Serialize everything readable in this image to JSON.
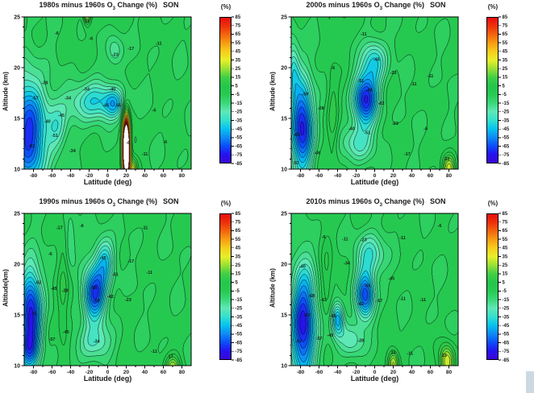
{
  "page": {
    "background": "#ffffff",
    "edge_strip_color": "#cdd9e2"
  },
  "colors": {
    "frame": "#000000",
    "tick_text": "#1a1a1a",
    "title_text": "#1a1a1a",
    "contour_label": "#111111",
    "saturated_fill": "#ffffff",
    "over_range_band": "#5a1010",
    "map": [
      [
        -85,
        "#3c06d6"
      ],
      [
        -75,
        "#2414f0"
      ],
      [
        -65,
        "#0b50fa"
      ],
      [
        -55,
        "#0d8cf5"
      ],
      [
        -45,
        "#06c3ef"
      ],
      [
        -35,
        "#35e0cc"
      ],
      [
        -25,
        "#5fe8b5"
      ],
      [
        -15,
        "#39d878"
      ],
      [
        -5,
        "#27ca52"
      ],
      [
        5,
        "#23c64b"
      ],
      [
        15,
        "#40cf45"
      ],
      [
        25,
        "#97e035"
      ],
      [
        35,
        "#e6ef2b"
      ],
      [
        45,
        "#f6cf1d"
      ],
      [
        55,
        "#f89e12"
      ],
      [
        65,
        "#f4660d"
      ],
      [
        75,
        "#ee320b"
      ],
      [
        85,
        "#e60e0e"
      ]
    ]
  },
  "chart_data": [
    {
      "type": "contour",
      "name": "1980s",
      "title": "1980s minus 1960s O3 Change (%)",
      "title_pre": "1980s minus 1960s O",
      "title_sub": "3",
      "title_post": " Change (%)",
      "season": "SON",
      "xlabel": "Latitude (deg)",
      "ylabel": "Altitude (km)",
      "xlim": [
        -90,
        90
      ],
      "ylim": [
        10,
        25
      ],
      "x_ticks": [
        -80,
        -60,
        -40,
        -20,
        0,
        20,
        40,
        60,
        80
      ],
      "y_ticks": [
        10,
        15,
        20,
        25
      ],
      "x_minor_step": 10,
      "y_minor_step": 1,
      "colorbar": {
        "label": "(%)",
        "min": -85,
        "max": 85,
        "tick_step": 10,
        "ticks": [
          85,
          75,
          65,
          55,
          45,
          35,
          25,
          15,
          5,
          -5,
          -15,
          -25,
          -35,
          -45,
          -55,
          -65,
          -75,
          -85
        ]
      },
      "contour_interval_pct": 5.7,
      "base_value_pct": -4.5,
      "features": [
        {
          "name": "antarctic-depletion-core",
          "lat": -85,
          "alt": 13.5,
          "peak_pct": -66,
          "lat_halfwidth": 19,
          "alt_halfwidth": 5.5
        },
        {
          "name": "southern-midlat-band",
          "lat": -55,
          "alt": 14,
          "peak_pct": -22,
          "lat_halfwidth": 11,
          "alt_halfwidth": 2.5
        },
        {
          "name": "tropical-band-17km",
          "lat": -15,
          "alt": 16.6,
          "peak_pct": -36,
          "lat_halfwidth": 28,
          "alt_halfwidth": 1.9
        },
        {
          "name": "tropical-pocket",
          "lat": 7,
          "alt": 16.4,
          "peak_pct": -26,
          "lat_halfwidth": 10,
          "alt_halfwidth": 1.4
        },
        {
          "name": "upper-tropical-pocket",
          "lat": 8,
          "alt": 21.6,
          "peak_pct": -19,
          "lat_halfwidth": 9,
          "alt_halfwidth": 1.6
        },
        {
          "name": "volcanic-aerosol-column",
          "lat": 20,
          "alt": 12,
          "peak_pct": 260,
          "lat_halfwidth": 3.5,
          "alt_halfwidth": 2.6
        },
        {
          "name": "volcanic-base-positive",
          "lat": 27,
          "alt": 9.8,
          "peak_pct": 34,
          "lat_halfwidth": 5,
          "alt_halfwidth": 1.3
        },
        {
          "name": "top-edge-positive",
          "lat": -22,
          "alt": 26,
          "peak_pct": 60,
          "lat_halfwidth": 4,
          "alt_halfwidth": 1.4
        }
      ],
      "labeled_contours": [
        {
          "lat": -55,
          "alt": 23.4,
          "label": "-6"
        },
        {
          "lat": -18,
          "alt": 22.9,
          "label": "-6"
        },
        {
          "lat": -22,
          "alt": 24.6,
          "label": "11"
        },
        {
          "lat": 25,
          "alt": 21.9,
          "label": "-17"
        },
        {
          "lat": 55,
          "alt": 22.4,
          "label": "-11"
        },
        {
          "lat": 8,
          "alt": 21.3,
          "label": "-23"
        },
        {
          "lat": -68,
          "alt": 18.5,
          "label": "-28"
        },
        {
          "lat": -78,
          "alt": 17.0,
          "label": "-57"
        },
        {
          "lat": -43,
          "alt": 17.0,
          "label": "-34"
        },
        {
          "lat": -23,
          "alt": 17.9,
          "label": "-34"
        },
        {
          "lat": 5,
          "alt": 17.9,
          "label": "-40"
        },
        {
          "lat": -2,
          "alt": 16.3,
          "label": "-45"
        },
        {
          "lat": 11,
          "alt": 16.3,
          "label": "-55"
        },
        {
          "lat": -50,
          "alt": 15.3,
          "label": "-45"
        },
        {
          "lat": -65,
          "alt": 14.7,
          "label": "-40"
        },
        {
          "lat": -57,
          "alt": 13.3,
          "label": "-51"
        },
        {
          "lat": -82,
          "alt": 12.3,
          "label": "-62"
        },
        {
          "lat": -38,
          "alt": 11.8,
          "label": "-34"
        },
        {
          "lat": 50,
          "alt": 15.8,
          "label": "-6"
        },
        {
          "lat": 62,
          "alt": 12.7,
          "label": "-6"
        },
        {
          "lat": 40,
          "alt": 11.5,
          "label": "-11"
        },
        {
          "lat": 22,
          "alt": 12.6,
          "label": "-6"
        }
      ]
    },
    {
      "type": "contour",
      "name": "2000s",
      "title": "2000s minus 1960s O3 Change (%)",
      "title_pre": "2000s minus 1960s O",
      "title_sub": "3",
      "title_post": " Change (%)",
      "season": "SON",
      "xlabel": "Latitude (deg)",
      "ylabel": "Altitude (km)",
      "xlim": [
        -90,
        90
      ],
      "ylim": [
        10,
        25
      ],
      "x_ticks": [
        -80,
        -60,
        -40,
        -20,
        0,
        20,
        40,
        60,
        80
      ],
      "y_ticks": [
        10,
        15,
        20,
        25
      ],
      "x_minor_step": 10,
      "y_minor_step": 1,
      "colorbar": {
        "label": "(%)",
        "min": -85,
        "max": 85,
        "tick_step": 10,
        "ticks": [
          85,
          75,
          65,
          55,
          45,
          35,
          25,
          15,
          5,
          -5,
          -15,
          -25,
          -35,
          -45,
          -55,
          -65,
          -75,
          -85
        ]
      },
      "contour_interval_pct": 5.7,
      "base_value_pct": -4.5,
      "features": [
        {
          "name": "antarctic-depletion-core",
          "lat": -78,
          "alt": 14.2,
          "peak_pct": -72,
          "lat_halfwidth": 12,
          "alt_halfwidth": 4.6
        },
        {
          "name": "antarctic-upper-lobe",
          "lat": -88,
          "alt": 20,
          "peak_pct": -28,
          "lat_halfwidth": 7,
          "alt_halfwidth": 2.8
        },
        {
          "name": "tropical-depletion-core",
          "lat": -10,
          "alt": 16.9,
          "peak_pct": -68,
          "lat_halfwidth": 13,
          "alt_halfwidth": 2.5
        },
        {
          "name": "tropical-upper-lobe",
          "lat": 0,
          "alt": 20.6,
          "peak_pct": -34,
          "lat_halfwidth": 13,
          "alt_halfwidth": 2.2
        },
        {
          "name": "tropical-lower-lobe",
          "lat": -18,
          "alt": 12.6,
          "peak_pct": -26,
          "lat_halfwidth": 17,
          "alt_halfwidth": 1.9
        },
        {
          "name": "midlat-ridge",
          "lat": -45,
          "alt": 15,
          "peak_pct": 14,
          "lat_halfwidth": 6,
          "alt_halfwidth": 5
        },
        {
          "name": "se-corner-positive",
          "lat": 80,
          "alt": 10,
          "peak_pct": 34,
          "lat_halfwidth": 7,
          "alt_halfwidth": 1.4
        }
      ],
      "labeled_contours": [
        {
          "lat": -12,
          "alt": 23.3,
          "label": "-11"
        },
        {
          "lat": -45,
          "alt": 20.0,
          "label": "-6"
        },
        {
          "lat": 20,
          "alt": 19.5,
          "label": "-23"
        },
        {
          "lat": 42,
          "alt": 18.4,
          "label": "-11"
        },
        {
          "lat": 2,
          "alt": 20.8,
          "label": "-45"
        },
        {
          "lat": -15,
          "alt": 18.7,
          "label": "-51"
        },
        {
          "lat": -6,
          "alt": 17.8,
          "label": "-68"
        },
        {
          "lat": 7,
          "alt": 16.5,
          "label": "-62"
        },
        {
          "lat": -25,
          "alt": 14.0,
          "label": "-40"
        },
        {
          "lat": -8,
          "alt": 13.6,
          "label": "-51"
        },
        {
          "lat": 22,
          "alt": 14.5,
          "label": "-23"
        },
        {
          "lat": -75,
          "alt": 17.4,
          "label": "-59"
        },
        {
          "lat": -58,
          "alt": 16.0,
          "label": "-28"
        },
        {
          "lat": -84,
          "alt": 13.4,
          "label": "-63"
        },
        {
          "lat": -62,
          "alt": 11.6,
          "label": "-46"
        },
        {
          "lat": -85,
          "alt": 10.6,
          "label": "-57"
        },
        {
          "lat": 55,
          "alt": 14.0,
          "label": "-6"
        },
        {
          "lat": 60,
          "alt": 19.2,
          "label": "-11"
        },
        {
          "lat": 78,
          "alt": 11.0,
          "label": "23"
        },
        {
          "lat": 35,
          "alt": 11.5,
          "label": "-17"
        }
      ]
    },
    {
      "type": "contour",
      "name": "1990s",
      "title": "1990s minus 1960s O3 Change (%)",
      "title_pre": "1990s minus 1960s O",
      "title_sub": "3",
      "title_post": " Change (%)",
      "season": "SON",
      "xlabel": "Latitude (deg)",
      "ylabel": "Altitude(km)",
      "xlim": [
        -90,
        90
      ],
      "ylim": [
        10,
        25
      ],
      "x_ticks": [
        -80,
        -60,
        -40,
        -20,
        0,
        20,
        40,
        60,
        80
      ],
      "y_ticks": [
        10,
        15,
        20,
        25
      ],
      "x_minor_step": 10,
      "y_minor_step": 1,
      "colorbar": {
        "label": "(%)",
        "min": -85,
        "max": 85,
        "tick_step": 10,
        "ticks": [
          85,
          75,
          65,
          55,
          45,
          35,
          25,
          15,
          5,
          -5,
          -15,
          -25,
          -35,
          -45,
          -55,
          -65,
          -75,
          -85
        ]
      },
      "contour_interval_pct": 5.7,
      "base_value_pct": -4.5,
      "features": [
        {
          "name": "antarctic-depletion-core",
          "lat": -83,
          "alt": 14.8,
          "peak_pct": -74,
          "lat_halfwidth": 12,
          "alt_halfwidth": 4.8
        },
        {
          "name": "antarctic-lower-lobe",
          "lat": -86,
          "alt": 11.5,
          "peak_pct": -20,
          "lat_halfwidth": 9,
          "alt_halfwidth": 1.6
        },
        {
          "name": "tropical-depletion-core",
          "lat": -14,
          "alt": 17.1,
          "peak_pct": -64,
          "lat_halfwidth": 12.5,
          "alt_halfwidth": 2.5
        },
        {
          "name": "tropical-upper-lobe",
          "lat": -3,
          "alt": 20.4,
          "peak_pct": -36,
          "lat_halfwidth": 11,
          "alt_halfwidth": 2.3
        },
        {
          "name": "tropical-lower-lobe",
          "lat": -15,
          "alt": 12.3,
          "peak_pct": -26,
          "lat_halfwidth": 19,
          "alt_halfwidth": 1.8
        },
        {
          "name": "midlat-upper-pocket",
          "lat": -40,
          "alt": 22,
          "peak_pct": -16,
          "lat_halfwidth": 6,
          "alt_halfwidth": 2.5
        },
        {
          "name": "midlat-ridge",
          "lat": -48,
          "alt": 16,
          "peak_pct": 12,
          "lat_halfwidth": 6,
          "alt_halfwidth": 6
        },
        {
          "name": "se-corner-positive",
          "lat": 70,
          "alt": 9.7,
          "peak_pct": 30,
          "lat_halfwidth": 8,
          "alt_halfwidth": 1.3
        }
      ],
      "labeled_contours": [
        {
          "lat": -52,
          "alt": 23.6,
          "label": "-17"
        },
        {
          "lat": -28,
          "alt": 23.8,
          "label": "-6"
        },
        {
          "lat": 40,
          "alt": 23.6,
          "label": "-11"
        },
        {
          "lat": -62,
          "alt": 21.0,
          "label": "-6"
        },
        {
          "lat": -5,
          "alt": 20.6,
          "label": "-45"
        },
        {
          "lat": 25,
          "alt": 20.3,
          "label": "-17"
        },
        {
          "lat": 8,
          "alt": 19.0,
          "label": "-51"
        },
        {
          "lat": 45,
          "alt": 19.2,
          "label": "-11"
        },
        {
          "lat": -75,
          "alt": 18.2,
          "label": "-62"
        },
        {
          "lat": -58,
          "alt": 17.6,
          "label": "-45"
        },
        {
          "lat": -46,
          "alt": 17.4,
          "label": "-28"
        },
        {
          "lat": -15,
          "alt": 17.7,
          "label": "-58"
        },
        {
          "lat": 3,
          "alt": 16.8,
          "label": "-42"
        },
        {
          "lat": 22,
          "alt": 16.5,
          "label": "-23"
        },
        {
          "lat": -12,
          "alt": 16.4,
          "label": "-68"
        },
        {
          "lat": -80,
          "alt": 15.1,
          "label": "-75"
        },
        {
          "lat": -45,
          "alt": 13.3,
          "label": "-45"
        },
        {
          "lat": -60,
          "alt": 12.6,
          "label": "-57"
        },
        {
          "lat": -12,
          "alt": 12.4,
          "label": "-34"
        },
        {
          "lat": 50,
          "alt": 11.4,
          "label": "-11"
        },
        {
          "lat": 68,
          "alt": 10.9,
          "label": "17"
        }
      ]
    },
    {
      "type": "contour",
      "name": "2010s",
      "title": "2010s minus 1960s O3 Change (%)",
      "title_pre": "2010s minus 1960s O",
      "title_sub": "3",
      "title_post": " Change (%)",
      "season": "SON",
      "xlabel": "Latitude (deg)",
      "ylabel": "Altitude (km)",
      "xlim": [
        -90,
        90
      ],
      "ylim": [
        10,
        25
      ],
      "x_ticks": [
        -80,
        -60,
        -40,
        -20,
        0,
        20,
        40,
        60,
        80
      ],
      "y_ticks": [
        10,
        15,
        20,
        25
      ],
      "x_minor_step": 10,
      "y_minor_step": 1,
      "colorbar": {
        "label": "(%)",
        "min": -85,
        "max": 85,
        "tick_step": 10,
        "ticks": [
          85,
          75,
          65,
          55,
          45,
          35,
          25,
          15,
          5,
          -5,
          -15,
          -25,
          -35,
          -45,
          -55,
          -65,
          -75,
          -85
        ]
      },
      "contour_interval_pct": 5.7,
      "base_value_pct": -4.5,
      "features": [
        {
          "name": "antarctic-depletion-core",
          "lat": -77,
          "alt": 14,
          "peak_pct": -74,
          "lat_halfwidth": 13,
          "alt_halfwidth": 5.5
        },
        {
          "name": "tropical-depletion-core",
          "lat": -10,
          "alt": 16.9,
          "peak_pct": -60,
          "lat_halfwidth": 10,
          "alt_halfwidth": 2.3
        },
        {
          "name": "tropical-upper-lobe",
          "lat": -5,
          "alt": 20.9,
          "peak_pct": -30,
          "lat_halfwidth": 15,
          "alt_halfwidth": 2.2
        },
        {
          "name": "midlat-light-pocket",
          "lat": -40,
          "alt": 14.6,
          "peak_pct": -46,
          "lat_halfwidth": 7,
          "alt_halfwidth": 1.7
        },
        {
          "name": "tropical-lower-lobe",
          "lat": -25,
          "alt": 12.4,
          "peak_pct": -22,
          "lat_halfwidth": 14,
          "alt_halfwidth": 1.8
        },
        {
          "name": "midlat-ridge",
          "lat": -52,
          "alt": 18.5,
          "peak_pct": 10,
          "lat_halfwidth": 6,
          "alt_halfwidth": 4
        },
        {
          "name": "tropical-low-positive",
          "lat": 20,
          "alt": 10.2,
          "peak_pct": 34,
          "lat_halfwidth": 6,
          "alt_halfwidth": 1.3
        },
        {
          "name": "se-corner-positive",
          "lat": 78,
          "alt": 10.4,
          "peak_pct": 40,
          "lat_halfwidth": 8,
          "alt_halfwidth": 1.7
        }
      ],
      "labeled_contours": [
        {
          "lat": -55,
          "alt": 22.7,
          "label": "-6"
        },
        {
          "lat": -32,
          "alt": 22.5,
          "label": "-11"
        },
        {
          "lat": -12,
          "alt": 22.4,
          "label": "-23"
        },
        {
          "lat": 30,
          "alt": 22.6,
          "label": "-11"
        },
        {
          "lat": 70,
          "alt": 23.8,
          "label": "-6"
        },
        {
          "lat": -78,
          "alt": 19.8,
          "label": "-40"
        },
        {
          "lat": -30,
          "alt": 20.1,
          "label": "-34"
        },
        {
          "lat": 18,
          "alt": 18.6,
          "label": "-45"
        },
        {
          "lat": -8,
          "alt": 17.9,
          "label": "-56"
        },
        {
          "lat": -68,
          "alt": 16.9,
          "label": "-68"
        },
        {
          "lat": -55,
          "alt": 16.5,
          "label": "-61"
        },
        {
          "lat": -15,
          "alt": 16.1,
          "label": "-62"
        },
        {
          "lat": 5,
          "alt": 16.4,
          "label": "-17"
        },
        {
          "lat": 30,
          "alt": 16.6,
          "label": "-11"
        },
        {
          "lat": 52,
          "alt": 16.5,
          "label": "-11"
        },
        {
          "lat": -45,
          "alt": 14.9,
          "label": "-45"
        },
        {
          "lat": -73,
          "alt": 15.0,
          "label": "-63"
        },
        {
          "lat": -48,
          "alt": 13.0,
          "label": "-40"
        },
        {
          "lat": -60,
          "alt": 12.7,
          "label": "-57"
        },
        {
          "lat": -15,
          "alt": 12.5,
          "label": "-28"
        },
        {
          "lat": -82,
          "alt": 12.4,
          "label": "-57"
        },
        {
          "lat": 20,
          "alt": 11.3,
          "label": "23"
        },
        {
          "lat": 38,
          "alt": 11.2,
          "label": "-11"
        },
        {
          "lat": 75,
          "alt": 11.0,
          "label": "23"
        }
      ]
    }
  ]
}
